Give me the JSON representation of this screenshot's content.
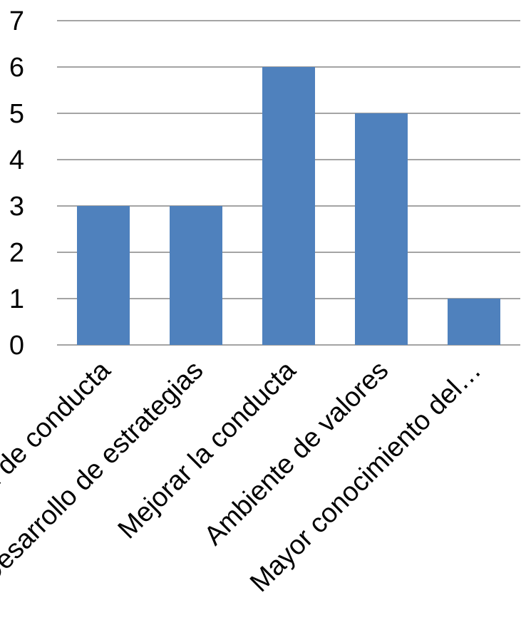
{
  "chart_data": {
    "type": "bar",
    "categories": [
      "Modificación de conducta",
      "Desarrollo de estrategias",
      "Mejorar la conducta",
      "Ambiente de valores",
      "Mayor conocimiento del…"
    ],
    "values": [
      3,
      3,
      6,
      5,
      1
    ],
    "yticks": [
      "0",
      "1",
      "2",
      "3",
      "4",
      "5",
      "6",
      "7"
    ],
    "ylim": [
      0,
      7
    ],
    "grid": true,
    "legend": "none",
    "bar_color": "#4F81BD",
    "grid_color": "#868686",
    "title": "",
    "xlabel": "",
    "ylabel": ""
  }
}
